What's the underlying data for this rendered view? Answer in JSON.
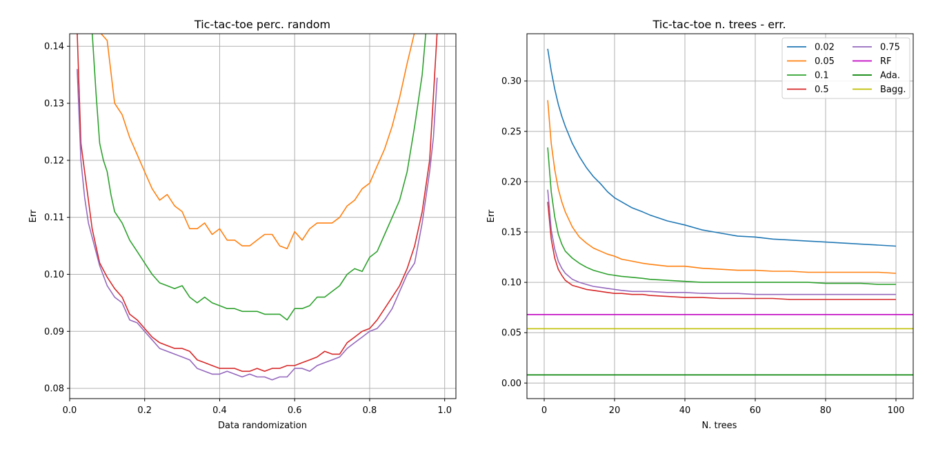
{
  "colors": {
    "s002": "#1f77b4",
    "s005": "#ff7f0e",
    "s01": "#2ca02c",
    "s05": "#d62728",
    "s075": "#9467bd",
    "rf": "#c000c0",
    "ada": "#008000",
    "bagg": "#bfbf00",
    "grid": "#b0b0b0",
    "axis": "#000000"
  },
  "chart_data": [
    {
      "type": "line",
      "title": "Tic-tac-toe perc. random",
      "xlabel": "Data randomization",
      "ylabel": "Err",
      "xlim": [
        -0.0,
        1.03
      ],
      "ylim": [
        0.0782,
        0.1422
      ],
      "xticks": [
        0.0,
        0.2,
        0.4,
        0.6,
        0.8,
        1.0
      ],
      "xtick_labels": [
        "0.0",
        "0.2",
        "0.4",
        "0.6",
        "0.8",
        "1.0"
      ],
      "yticks": [
        0.08,
        0.09,
        0.1,
        0.11,
        0.12,
        0.13,
        0.14
      ],
      "ytick_labels": [
        "0.08",
        "0.09",
        "0.10",
        "0.11",
        "0.12",
        "0.13",
        "0.14"
      ],
      "grid": true,
      "series": [
        {
          "name": "0.05",
          "color": "#ff7f0e",
          "x": [
            0.08,
            0.1,
            0.12,
            0.14,
            0.16,
            0.18,
            0.2,
            0.22,
            0.24,
            0.26,
            0.28,
            0.3,
            0.32,
            0.34,
            0.36,
            0.38,
            0.4,
            0.42,
            0.44,
            0.46,
            0.48,
            0.5,
            0.52,
            0.54,
            0.56,
            0.58,
            0.6,
            0.62,
            0.64,
            0.66,
            0.68,
            0.7,
            0.72,
            0.74,
            0.76,
            0.78,
            0.8,
            0.82,
            0.84,
            0.86,
            0.88,
            0.9,
            0.92
          ],
          "y": [
            0.1425,
            0.141,
            0.13,
            0.128,
            0.124,
            0.121,
            0.118,
            0.115,
            0.113,
            0.114,
            0.112,
            0.111,
            0.108,
            0.108,
            0.109,
            0.107,
            0.108,
            0.106,
            0.106,
            0.105,
            0.105,
            0.106,
            0.107,
            0.107,
            0.105,
            0.1045,
            0.1075,
            0.106,
            0.108,
            0.109,
            0.109,
            0.109,
            0.11,
            0.112,
            0.113,
            0.115,
            0.116,
            0.119,
            0.122,
            0.126,
            0.131,
            0.137,
            0.1425
          ]
        },
        {
          "name": "0.1",
          "color": "#2ca02c",
          "x": [
            0.06,
            0.07,
            0.08,
            0.09,
            0.1,
            0.11,
            0.12,
            0.14,
            0.16,
            0.18,
            0.2,
            0.22,
            0.24,
            0.26,
            0.28,
            0.3,
            0.32,
            0.34,
            0.36,
            0.38,
            0.4,
            0.42,
            0.44,
            0.46,
            0.48,
            0.5,
            0.52,
            0.54,
            0.56,
            0.58,
            0.6,
            0.62,
            0.64,
            0.66,
            0.68,
            0.7,
            0.72,
            0.74,
            0.76,
            0.78,
            0.8,
            0.82,
            0.84,
            0.86,
            0.88,
            0.9,
            0.92,
            0.94,
            0.95
          ],
          "y": [
            0.1425,
            0.132,
            0.123,
            0.12,
            0.118,
            0.114,
            0.111,
            0.109,
            0.106,
            0.104,
            0.102,
            0.1,
            0.0985,
            0.098,
            0.0975,
            0.098,
            0.096,
            0.095,
            0.096,
            0.095,
            0.0945,
            0.094,
            0.094,
            0.0935,
            0.0935,
            0.0935,
            0.093,
            0.093,
            0.093,
            0.092,
            0.094,
            0.094,
            0.0945,
            0.096,
            0.096,
            0.097,
            0.098,
            0.1,
            0.101,
            0.1005,
            0.103,
            0.104,
            0.107,
            0.11,
            0.113,
            0.118,
            0.126,
            0.135,
            0.1425
          ]
        },
        {
          "name": "0.5",
          "color": "#d62728",
          "x": [
            0.02,
            0.03,
            0.04,
            0.05,
            0.06,
            0.08,
            0.1,
            0.12,
            0.14,
            0.16,
            0.18,
            0.2,
            0.22,
            0.24,
            0.26,
            0.28,
            0.3,
            0.32,
            0.34,
            0.36,
            0.38,
            0.4,
            0.42,
            0.44,
            0.46,
            0.48,
            0.5,
            0.52,
            0.54,
            0.56,
            0.58,
            0.6,
            0.62,
            0.64,
            0.66,
            0.68,
            0.7,
            0.72,
            0.74,
            0.76,
            0.78,
            0.8,
            0.82,
            0.84,
            0.86,
            0.88,
            0.9,
            0.92,
            0.94,
            0.96,
            0.98
          ],
          "y": [
            0.1425,
            0.123,
            0.118,
            0.113,
            0.108,
            0.102,
            0.0995,
            0.0975,
            0.096,
            0.093,
            0.092,
            0.0905,
            0.089,
            0.088,
            0.0875,
            0.087,
            0.087,
            0.0865,
            0.085,
            0.0845,
            0.084,
            0.0835,
            0.0835,
            0.0835,
            0.083,
            0.083,
            0.0835,
            0.083,
            0.0835,
            0.0835,
            0.084,
            0.084,
            0.0845,
            0.085,
            0.0855,
            0.0865,
            0.086,
            0.086,
            0.088,
            0.089,
            0.09,
            0.0905,
            0.092,
            0.094,
            0.096,
            0.098,
            0.101,
            0.105,
            0.111,
            0.12,
            0.1425
          ]
        },
        {
          "name": "0.75",
          "color": "#9467bd",
          "x": [
            0.02,
            0.03,
            0.04,
            0.05,
            0.06,
            0.08,
            0.1,
            0.12,
            0.14,
            0.16,
            0.18,
            0.2,
            0.22,
            0.24,
            0.26,
            0.28,
            0.3,
            0.32,
            0.34,
            0.36,
            0.38,
            0.4,
            0.42,
            0.44,
            0.46,
            0.48,
            0.5,
            0.52,
            0.54,
            0.56,
            0.58,
            0.6,
            0.62,
            0.64,
            0.66,
            0.68,
            0.7,
            0.72,
            0.74,
            0.76,
            0.78,
            0.8,
            0.82,
            0.84,
            0.86,
            0.88,
            0.9,
            0.92,
            0.94,
            0.96,
            0.97,
            0.98
          ],
          "y": [
            0.136,
            0.12,
            0.1135,
            0.109,
            0.1065,
            0.1015,
            0.098,
            0.096,
            0.095,
            0.092,
            0.0915,
            0.09,
            0.0885,
            0.087,
            0.0865,
            0.086,
            0.0855,
            0.085,
            0.0835,
            0.083,
            0.0825,
            0.0825,
            0.083,
            0.0825,
            0.082,
            0.0825,
            0.082,
            0.082,
            0.0815,
            0.082,
            0.082,
            0.0835,
            0.0835,
            0.083,
            0.084,
            0.0845,
            0.085,
            0.0855,
            0.087,
            0.088,
            0.089,
            0.09,
            0.0905,
            0.092,
            0.094,
            0.097,
            0.1,
            0.102,
            0.109,
            0.118,
            0.124,
            0.1345
          ]
        }
      ]
    },
    {
      "type": "line",
      "title": "Tic-tac-toe n. trees - err.",
      "xlabel": "N. trees",
      "ylabel": "Err",
      "xlim": [
        -4.9,
        104.9
      ],
      "ylim": [
        -0.0155,
        0.347
      ],
      "xticks": [
        0,
        20,
        40,
        60,
        80,
        100
      ],
      "xtick_labels": [
        "0",
        "20",
        "40",
        "60",
        "80",
        "100"
      ],
      "yticks": [
        0.0,
        0.05,
        0.1,
        0.15,
        0.2,
        0.25,
        0.3
      ],
      "ytick_labels": [
        "0.00",
        "0.05",
        "0.10",
        "0.15",
        "0.20",
        "0.25",
        "0.30"
      ],
      "grid": true,
      "legend": {
        "position": "top-right",
        "columns": 2
      },
      "series": [
        {
          "name": "0.02",
          "color": "#1f77b4",
          "x": [
            1,
            2,
            3,
            4,
            5,
            6,
            8,
            10,
            12,
            14,
            16,
            18,
            20,
            22,
            25,
            28,
            30,
            35,
            40,
            45,
            50,
            55,
            60,
            65,
            70,
            75,
            80,
            85,
            90,
            95,
            100
          ],
          "y": [
            0.332,
            0.31,
            0.292,
            0.277,
            0.265,
            0.255,
            0.238,
            0.225,
            0.214,
            0.205,
            0.198,
            0.19,
            0.184,
            0.18,
            0.174,
            0.17,
            0.167,
            0.161,
            0.157,
            0.152,
            0.149,
            0.146,
            0.145,
            0.143,
            0.142,
            0.141,
            0.14,
            0.139,
            0.138,
            0.137,
            0.136
          ]
        },
        {
          "name": "0.05",
          "color": "#ff7f0e",
          "x": [
            1,
            2,
            3,
            4,
            5,
            6,
            8,
            10,
            12,
            14,
            16,
            18,
            20,
            22,
            25,
            28,
            30,
            35,
            40,
            45,
            50,
            55,
            60,
            65,
            70,
            75,
            80,
            85,
            90,
            95,
            100
          ],
          "y": [
            0.281,
            0.238,
            0.212,
            0.193,
            0.18,
            0.17,
            0.155,
            0.145,
            0.139,
            0.134,
            0.131,
            0.128,
            0.126,
            0.123,
            0.121,
            0.119,
            0.118,
            0.116,
            0.116,
            0.114,
            0.113,
            0.112,
            0.112,
            0.111,
            0.111,
            0.11,
            0.11,
            0.11,
            0.11,
            0.11,
            0.109
          ]
        },
        {
          "name": "0.1",
          "color": "#2ca02c",
          "x": [
            1,
            2,
            3,
            4,
            5,
            6,
            8,
            10,
            12,
            14,
            16,
            18,
            20,
            22,
            25,
            28,
            30,
            35,
            40,
            45,
            50,
            55,
            60,
            65,
            70,
            75,
            80,
            85,
            90,
            95,
            100
          ],
          "y": [
            0.234,
            0.19,
            0.165,
            0.148,
            0.138,
            0.131,
            0.124,
            0.119,
            0.115,
            0.112,
            0.11,
            0.108,
            0.107,
            0.106,
            0.105,
            0.104,
            0.103,
            0.102,
            0.101,
            0.1,
            0.1,
            0.1,
            0.1,
            0.1,
            0.1,
            0.1,
            0.099,
            0.099,
            0.099,
            0.098,
            0.098
          ]
        },
        {
          "name": "0.5",
          "color": "#d62728",
          "x": [
            1,
            2,
            3,
            4,
            5,
            6,
            8,
            10,
            12,
            14,
            16,
            18,
            20,
            22,
            25,
            28,
            30,
            35,
            40,
            45,
            50,
            55,
            60,
            65,
            70,
            75,
            80,
            85,
            90,
            95,
            100
          ],
          "y": [
            0.18,
            0.143,
            0.124,
            0.113,
            0.107,
            0.102,
            0.097,
            0.095,
            0.093,
            0.092,
            0.091,
            0.09,
            0.089,
            0.089,
            0.088,
            0.088,
            0.087,
            0.086,
            0.085,
            0.085,
            0.084,
            0.084,
            0.084,
            0.084,
            0.083,
            0.083,
            0.083,
            0.083,
            0.083,
            0.083,
            0.083
          ]
        },
        {
          "name": "0.75",
          "color": "#9467bd",
          "x": [
            1,
            2,
            3,
            4,
            5,
            6,
            8,
            10,
            12,
            14,
            16,
            18,
            20,
            22,
            25,
            28,
            30,
            35,
            40,
            45,
            50,
            55,
            60,
            65,
            70,
            75,
            80,
            85,
            90,
            95,
            100
          ],
          "y": [
            0.192,
            0.152,
            0.133,
            0.121,
            0.114,
            0.109,
            0.103,
            0.1,
            0.098,
            0.096,
            0.095,
            0.094,
            0.093,
            0.092,
            0.091,
            0.091,
            0.091,
            0.09,
            0.09,
            0.089,
            0.089,
            0.089,
            0.088,
            0.088,
            0.088,
            0.088,
            0.088,
            0.088,
            0.088,
            0.088,
            0.088
          ]
        },
        {
          "name": "RF",
          "color": "#c000c0",
          "x": [
            -4.9,
            104.9
          ],
          "y": [
            0.068,
            0.068
          ]
        },
        {
          "name": "Ada.",
          "color": "#008000",
          "x": [
            -4.9,
            104.9
          ],
          "y": [
            0.008,
            0.008
          ]
        },
        {
          "name": "Bagg.",
          "color": "#bfbf00",
          "x": [
            -4.9,
            104.9
          ],
          "y": [
            0.054,
            0.054
          ]
        }
      ]
    }
  ]
}
